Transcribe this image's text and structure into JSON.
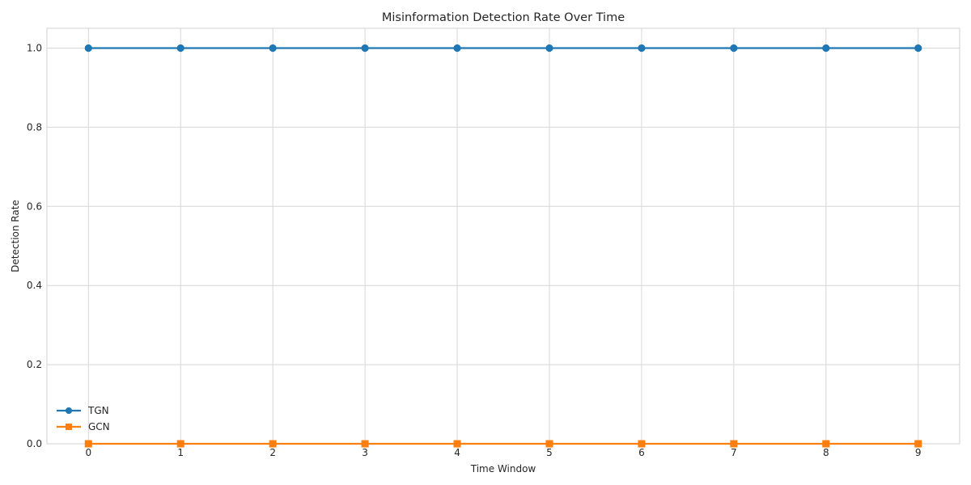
{
  "chart_data": {
    "type": "line",
    "title": "Misinformation Detection Rate Over Time",
    "xlabel": "Time Window",
    "ylabel": "Detection Rate",
    "x": [
      0,
      1,
      2,
      3,
      4,
      5,
      6,
      7,
      8,
      9
    ],
    "xlim": [
      -0.45,
      9.45
    ],
    "ylim": [
      0,
      1.05
    ],
    "yticks": [
      0.0,
      0.2,
      0.4,
      0.6,
      0.8,
      1.0
    ],
    "ytick_labels": [
      "0.0",
      "0.2",
      "0.4",
      "0.6",
      "0.8",
      "1.0"
    ],
    "grid": true,
    "legend": {
      "placement": "lower-left"
    },
    "series": [
      {
        "name": "TGN",
        "values": [
          1.0,
          1.0,
          1.0,
          1.0,
          1.0,
          1.0,
          1.0,
          1.0,
          1.0,
          1.0
        ],
        "color": "#1f77b4",
        "marker": "circle"
      },
      {
        "name": "GCN",
        "values": [
          0.0,
          0.0,
          0.0,
          0.0,
          0.0,
          0.0,
          0.0,
          0.0,
          0.0,
          0.0
        ],
        "color": "#ff7f0e",
        "marker": "square"
      }
    ]
  }
}
